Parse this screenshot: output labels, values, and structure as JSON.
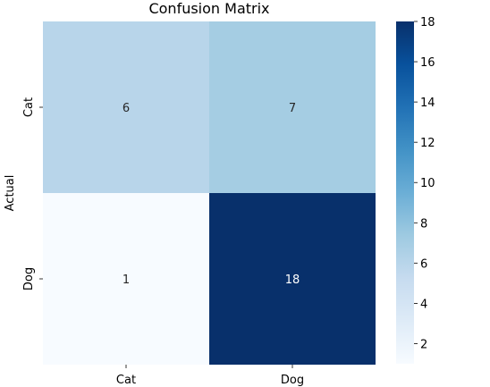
{
  "chart_data": {
    "type": "heatmap",
    "title": "Confusion Matrix",
    "xlabel": "",
    "ylabel": "Actual",
    "x_categories": [
      "Cat",
      "Dog"
    ],
    "y_categories": [
      "Cat",
      "Dog"
    ],
    "values": [
      [
        6,
        7
      ],
      [
        1,
        18
      ]
    ],
    "colormap": "Blues",
    "colorbar": {
      "min": 1,
      "max": 18,
      "ticks": [
        "2",
        "4",
        "6",
        "8",
        "10",
        "12",
        "14",
        "16",
        "18"
      ]
    },
    "grid": false,
    "colors": {
      "low": "#f7fbff",
      "high": "#08306b"
    }
  }
}
